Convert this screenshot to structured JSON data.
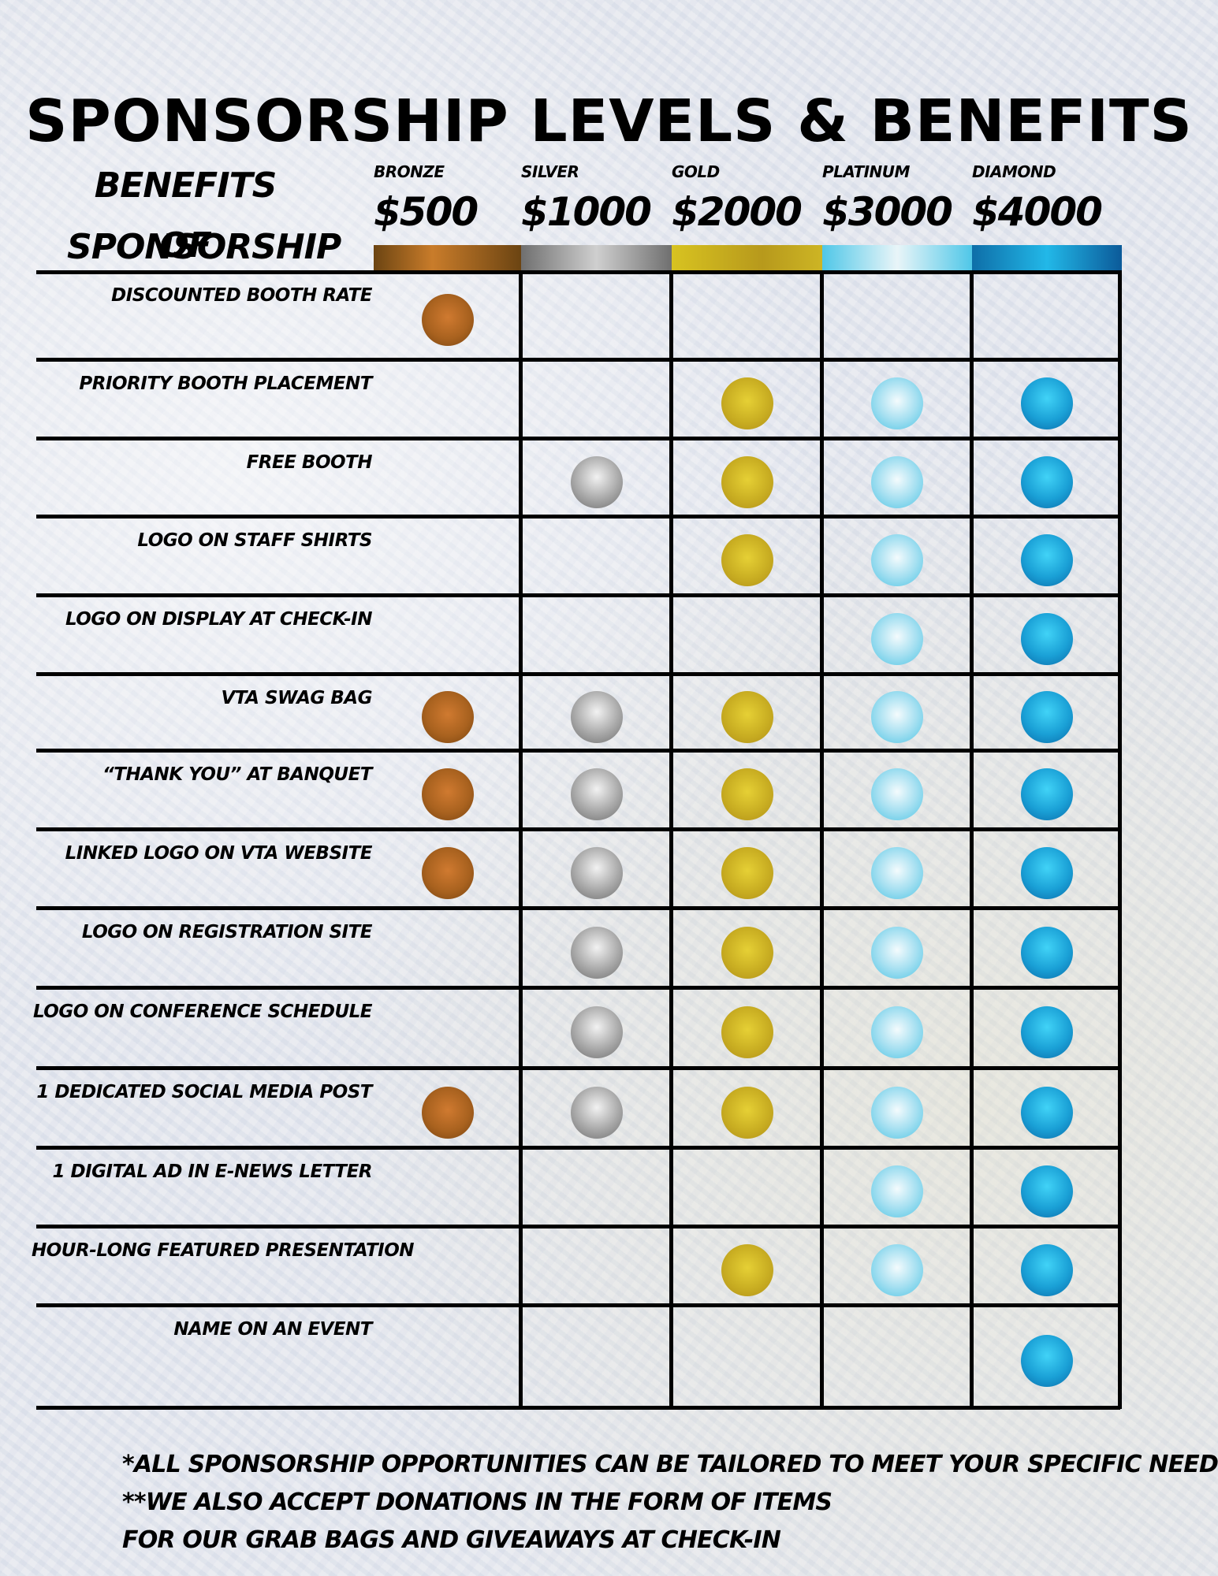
{
  "title": "SPONSORSHIP LEVELS & BENEFITS",
  "benefits_header_line1": "BENEFITS OF",
  "benefits_header_line2": "SPONSORSHIP",
  "levels": [
    {
      "key": "bronze",
      "name": "BRONZE",
      "price": "$500"
    },
    {
      "key": "silver",
      "name": "SILVER",
      "price": "$1000"
    },
    {
      "key": "gold",
      "name": "GOLD",
      "price": "$2000"
    },
    {
      "key": "platinum",
      "name": "PLATINUM",
      "price": "$3000"
    },
    {
      "key": "diamond",
      "name": "DIAMOND",
      "price": "$4000"
    }
  ],
  "benefits": [
    {
      "label": "DISCOUNTED BOOTH RATE",
      "included": [
        true,
        false,
        false,
        false,
        false
      ]
    },
    {
      "label": "PRIORITY BOOTH PLACEMENT",
      "included": [
        false,
        false,
        true,
        true,
        true
      ]
    },
    {
      "label": "FREE BOOTH",
      "included": [
        false,
        true,
        true,
        true,
        true
      ]
    },
    {
      "label": "LOGO ON STAFF SHIRTS",
      "included": [
        false,
        false,
        true,
        true,
        true
      ]
    },
    {
      "label": "LOGO ON DISPLAY AT CHECK-IN",
      "included": [
        false,
        false,
        false,
        true,
        true
      ]
    },
    {
      "label": "VTA SWAG BAG",
      "included": [
        true,
        true,
        true,
        true,
        true
      ]
    },
    {
      "label": "“THANK YOU” AT BANQUET",
      "included": [
        true,
        true,
        true,
        true,
        true
      ]
    },
    {
      "label": "LINKED LOGO ON VTA WEBSITE",
      "included": [
        true,
        true,
        true,
        true,
        true
      ]
    },
    {
      "label": "LOGO ON REGISTRATION SITE",
      "included": [
        false,
        true,
        true,
        true,
        true
      ]
    },
    {
      "label": "LOGO ON CONFERENCE SCHEDULE",
      "included": [
        false,
        true,
        true,
        true,
        true
      ]
    },
    {
      "label": "1 DEDICATED SOCIAL MEDIA POST",
      "included": [
        true,
        true,
        true,
        true,
        true
      ]
    },
    {
      "label": "1 DIGITAL AD IN E-NEWS LETTER",
      "included": [
        false,
        false,
        false,
        true,
        true
      ]
    },
    {
      "label": "HOUR-LONG FEATURED PRESENTATION",
      "included": [
        false,
        false,
        true,
        true,
        true
      ]
    },
    {
      "label": "NAME ON AN EVENT",
      "included": [
        false,
        false,
        false,
        false,
        true
      ]
    }
  ],
  "footnotes": [
    "*ALL SPONSORSHIP OPPORTUNITIES CAN BE TAILORED TO MEET YOUR SPECIFIC NEEDS",
    "**WE ALSO ACCEPT DONATIONS IN THE FORM OF ITEMS",
    "FOR OUR GRAB BAGS AND GIVEAWAYS AT CHECK-IN"
  ]
}
